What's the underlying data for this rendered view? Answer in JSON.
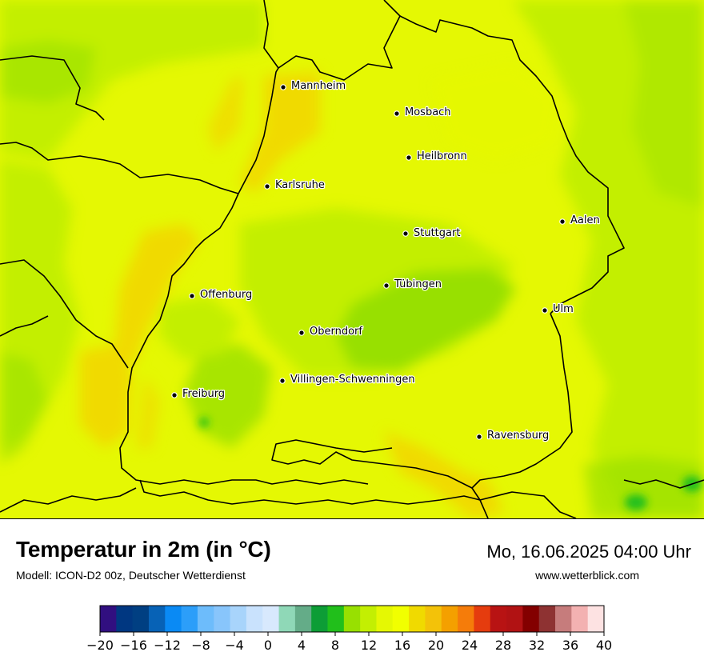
{
  "title": "Temperatur in 2m (in °C)",
  "model": "Modell: ICON-D2 00z, Deutscher Wetterdienst",
  "datetime": "Mo, 16.06.2025 04:00 Uhr",
  "website": "www.wetterblick.com",
  "map": {
    "cities": [
      {
        "name": "Mannheim"
      },
      {
        "name": "Mosbach"
      },
      {
        "name": "Heilbronn"
      },
      {
        "name": "Karlsruhe"
      },
      {
        "name": "Aalen"
      },
      {
        "name": "Stuttgart"
      },
      {
        "name": "Tübingen"
      },
      {
        "name": "Offenburg"
      },
      {
        "name": "Ulm"
      },
      {
        "name": "Oberndorf"
      },
      {
        "name": "Villingen-Schwenningen"
      },
      {
        "name": "Freiburg"
      },
      {
        "name": "Ravensburg"
      }
    ]
  },
  "legend": {
    "tick_labels": [
      "−20",
      "−16",
      "−12",
      "−8",
      "−4",
      "0",
      "4",
      "8",
      "12",
      "16",
      "20",
      "24",
      "28",
      "32",
      "36",
      "40"
    ],
    "colors": [
      "#310f80",
      "#003781",
      "#003f82",
      "#0762b6",
      "#0a8af4",
      "#2c9ef9",
      "#6dbcfb",
      "#88c5fb",
      "#a8d4fb",
      "#c9e2fd",
      "#d8e9fd",
      "#8fd8b7",
      "#64ac88",
      "#0d9d36",
      "#21bf1b",
      "#98e001",
      "#c3ef02",
      "#e5f803",
      "#f1ff00",
      "#f0da00",
      "#f3c209",
      "#f4a000",
      "#f57c0a",
      "#e53c0e",
      "#b81313",
      "#b11213",
      "#830000",
      "#8e3232",
      "#c67c7c",
      "#f3b1b1",
      "#fde2e2"
    ]
  }
}
